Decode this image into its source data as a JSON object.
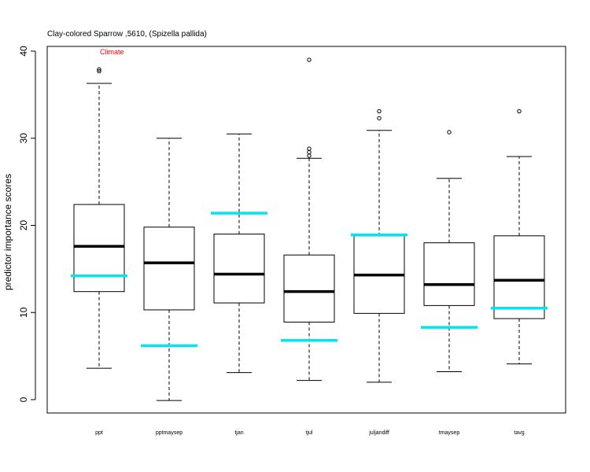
{
  "chart_data": {
    "type": "boxplot",
    "title": "Clay-colored Sparrow ,5610, (Spizella pallida)",
    "annotation": "Climate",
    "ylabel": "predictor importance scores",
    "xlabel": "",
    "ylim": [
      -1.5,
      41
    ],
    "yticks": [
      0,
      10,
      20,
      30,
      40
    ],
    "categories": [
      "ppt",
      "pptmaysep",
      "tjan",
      "tjul",
      "julјandiff",
      "tmaysep",
      "tavg"
    ],
    "boxes": [
      {
        "name": "ppt",
        "whisker_low": 3.6,
        "q1": 12.4,
        "median": 17.6,
        "q3": 22.4,
        "whisker_high": 36.3,
        "outliers": [
          37.7,
          37.9
        ],
        "reference": 14.2
      },
      {
        "name": "pptmaysep",
        "whisker_low": -0.1,
        "q1": 10.3,
        "median": 15.7,
        "q3": 19.8,
        "whisker_high": 30.0,
        "outliers": [],
        "reference": 6.2
      },
      {
        "name": "tjan",
        "whisker_low": 3.1,
        "q1": 11.1,
        "median": 14.4,
        "q3": 19.0,
        "whisker_high": 30.5,
        "outliers": [],
        "reference": 21.4
      },
      {
        "name": "tjul",
        "whisker_low": 2.2,
        "q1": 8.9,
        "median": 12.4,
        "q3": 16.6,
        "whisker_high": 27.7,
        "outliers": [
          28.0,
          28.4,
          28.8,
          39.0
        ],
        "reference": 6.8
      },
      {
        "name": "julјandiff",
        "whisker_low": 2.0,
        "q1": 9.9,
        "median": 14.3,
        "q3": 18.8,
        "whisker_high": 30.9,
        "outliers": [
          32.3,
          33.1
        ],
        "reference": 18.9
      },
      {
        "name": "tmaysep",
        "whisker_low": 3.2,
        "q1": 10.8,
        "median": 13.2,
        "q3": 18.0,
        "whisker_high": 25.4,
        "outliers": [
          30.7
        ],
        "reference": 8.3
      },
      {
        "name": "tavg",
        "whisker_low": 4.1,
        "q1": 9.3,
        "median": 13.7,
        "q3": 18.8,
        "whisker_high": 27.9,
        "outliers": [
          33.1
        ],
        "reference": 10.5
      }
    ],
    "colors": {
      "box": "#000000",
      "median": "#000000",
      "reference": "#00e5ee",
      "annotation": "#ff0000"
    },
    "grid": false,
    "legend": "none"
  }
}
